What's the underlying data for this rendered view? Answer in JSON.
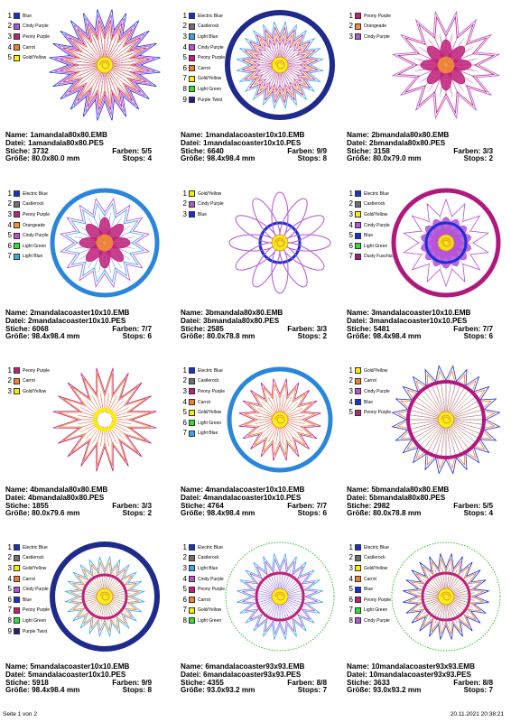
{
  "labels": {
    "name": "Name:",
    "file": "Datei:",
    "stitches": "Stiche:",
    "size": "Größe:",
    "colors": "Farben:",
    "stops": "Stops:"
  },
  "footer": {
    "page": "Seite 1 von 2",
    "timestamp": "20.11.2021 20:38:21"
  },
  "designs": [
    {
      "name": "1amandala80x80.EMB",
      "file": "1amandala80x80.PES",
      "stitches": "3732",
      "size": "80.0x80.0 mm",
      "colors": "5/5",
      "stops": "4",
      "palette": [
        {
          "label": "Blue",
          "hex": "#1a2fd8"
        },
        {
          "label": "Cindy Purple",
          "hex": "#b452d8"
        },
        {
          "label": "Peony Purple",
          "hex": "#c0207a"
        },
        {
          "label": "Carrot",
          "hex": "#f08030"
        },
        {
          "label": "Gold/Yellow",
          "hex": "#f4f000"
        }
      ]
    },
    {
      "name": "1mandalacoaster10x10.EMB",
      "file": "1mandalacoaster10x10.PES",
      "stitches": "6640",
      "size": "98.4x98.4 mm",
      "colors": "9/9",
      "stops": "8",
      "palette": [
        {
          "label": "Electric Blue",
          "hex": "#1535c8"
        },
        {
          "label": "Castlerock",
          "hex": "#707070"
        },
        {
          "label": "Light Blue",
          "hex": "#3aa6f0"
        },
        {
          "label": "Cindy Purple",
          "hex": "#b452d8"
        },
        {
          "label": "Peony Purple",
          "hex": "#c0207a"
        },
        {
          "label": "Carrot",
          "hex": "#f08030"
        },
        {
          "label": "Gold/Yellow",
          "hex": "#f4f000"
        },
        {
          "label": "Light Green",
          "hex": "#30e030"
        },
        {
          "label": "Purple Twist",
          "hex": "#2c1a8c"
        }
      ]
    },
    {
      "name": "2bmandala80x80.EMB",
      "file": "2bmandala80x80.PES",
      "stitches": "3158",
      "size": "80.0x79.0 mm",
      "colors": "3/3",
      "stops": "2",
      "palette": [
        {
          "label": "Peony Purple",
          "hex": "#c0207a"
        },
        {
          "label": "Orangeade",
          "hex": "#f0903a"
        },
        {
          "label": "Cindy Purple",
          "hex": "#b452d8"
        }
      ]
    },
    {
      "name": "2mandalacoaster10x10.EMB",
      "file": "2mandalacoaster10x10.PES",
      "stitches": "6068",
      "size": "98.4x98.4 mm",
      "colors": "7/7",
      "stops": "6",
      "palette": [
        {
          "label": "Electric Blue",
          "hex": "#1535c8"
        },
        {
          "label": "Castlerock",
          "hex": "#707070"
        },
        {
          "label": "Peony Purple",
          "hex": "#c0207a"
        },
        {
          "label": "Orangeade",
          "hex": "#f0903a"
        },
        {
          "label": "Cindy Purple",
          "hex": "#b452d8"
        },
        {
          "label": "Light Green",
          "hex": "#30e030"
        },
        {
          "label": "Light Blue",
          "hex": "#3aa6f0"
        }
      ]
    },
    {
      "name": "3bmandala80x80.EMB",
      "file": "3bmandala80x80.PES",
      "stitches": "2585",
      "size": "80.0x78.8 mm",
      "colors": "3/3",
      "stops": "2",
      "palette": [
        {
          "label": "Gold/Yellow",
          "hex": "#f4f000"
        },
        {
          "label": "Cindy Purple",
          "hex": "#b452d8"
        },
        {
          "label": "Blue",
          "hex": "#1a2fd8"
        }
      ]
    },
    {
      "name": "3mandalacoaster10x10.EMB",
      "file": "3mandalacoaster10x10.PES",
      "stitches": "5481",
      "size": "98.4x98.4 mm",
      "colors": "7/7",
      "stops": "6",
      "palette": [
        {
          "label": "Electric Blue",
          "hex": "#1535c8"
        },
        {
          "label": "Castlerock",
          "hex": "#707070"
        },
        {
          "label": "Gold/Yellow",
          "hex": "#f4f000"
        },
        {
          "label": "Cindy Purple",
          "hex": "#b452d8"
        },
        {
          "label": "Blue",
          "hex": "#1a2fd8"
        },
        {
          "label": "Light Green",
          "hex": "#30e030"
        },
        {
          "label": "Dusty Fuschia",
          "hex": "#b01880"
        }
      ]
    },
    {
      "name": "4bmandala80x80.EMB",
      "file": "4bmandala80x80.PES",
      "stitches": "1855",
      "size": "80.0x79.6 mm",
      "colors": "3/3",
      "stops": "2",
      "palette": [
        {
          "label": "Peony Purple",
          "hex": "#c0207a"
        },
        {
          "label": "Carrot",
          "hex": "#f08030"
        },
        {
          "label": "Gold/Yellow",
          "hex": "#f4f000"
        }
      ]
    },
    {
      "name": "4mandalacoaster10x10.EMB",
      "file": "4mandalacoaster10x10.PES",
      "stitches": "4764",
      "size": "98.4x98.4 mm",
      "colors": "7/7",
      "stops": "6",
      "palette": [
        {
          "label": "Electric Blue",
          "hex": "#1535c8"
        },
        {
          "label": "Castlerock",
          "hex": "#707070"
        },
        {
          "label": "Peony Purple",
          "hex": "#c0207a"
        },
        {
          "label": "Carrot",
          "hex": "#f08030"
        },
        {
          "label": "Gold/Yellow",
          "hex": "#f4f000"
        },
        {
          "label": "Light Green",
          "hex": "#30e030"
        },
        {
          "label": "Light Blue",
          "hex": "#3aa6f0"
        }
      ]
    },
    {
      "name": "5bmandala80x80.EMB",
      "file": "5bmandala80x80.PES",
      "stitches": "2982",
      "size": "80.0x78.8 mm",
      "colors": "5/5",
      "stops": "4",
      "palette": [
        {
          "label": "Gold/Yellow",
          "hex": "#f4f000"
        },
        {
          "label": "Carrot",
          "hex": "#f08030"
        },
        {
          "label": "Cindy Purple",
          "hex": "#b452d8"
        },
        {
          "label": "Blue",
          "hex": "#1a2fd8"
        },
        {
          "label": "Peony Purple",
          "hex": "#c0207a"
        }
      ]
    },
    {
      "name": "5mandalacoaster10x10.EMB",
      "file": "5mandalacoaster10x10.PES",
      "stitches": "5918",
      "size": "98.4x98.4 mm",
      "colors": "9/9",
      "stops": "8",
      "palette": [
        {
          "label": "Electric Blue",
          "hex": "#1535c8"
        },
        {
          "label": "Castlerock",
          "hex": "#707070"
        },
        {
          "label": "Gold/Yellow",
          "hex": "#f4f000"
        },
        {
          "label": "Carrot",
          "hex": "#f08030"
        },
        {
          "label": "Cindy Purple",
          "hex": "#b452d8"
        },
        {
          "label": "Blue",
          "hex": "#1a2fd8"
        },
        {
          "label": "Peony Purple",
          "hex": "#c0207a"
        },
        {
          "label": "Light Green",
          "hex": "#30e030"
        },
        {
          "label": "Purple Twist",
          "hex": "#2c1a8c"
        }
      ]
    },
    {
      "name": "6mandalacoaster93x93.EMB",
      "file": "6mandalacoaster93x93.PES",
      "stitches": "4355",
      "size": "93.0x93.2 mm",
      "colors": "8/8",
      "stops": "7",
      "palette": [
        {
          "label": "Electric Blue",
          "hex": "#1535c8"
        },
        {
          "label": "Castlerock",
          "hex": "#707070"
        },
        {
          "label": "Light Blue",
          "hex": "#3aa6f0"
        },
        {
          "label": "Cindy Purple",
          "hex": "#b452d8"
        },
        {
          "label": "Peony Purple",
          "hex": "#c0207a"
        },
        {
          "label": "Carrot",
          "hex": "#f08030"
        },
        {
          "label": "Gold/Yellow",
          "hex": "#f4f000"
        },
        {
          "label": "Light Green",
          "hex": "#30e030"
        }
      ]
    },
    {
      "name": "10mandalacoaster93x93.EMB",
      "file": "10mandalacoaster93x93.PES",
      "stitches": "3633",
      "size": "93.0x93.2 mm",
      "colors": "8/8",
      "stops": "7",
      "palette": [
        {
          "label": "Electric Blue",
          "hex": "#1535c8"
        },
        {
          "label": "Castlerock",
          "hex": "#707070"
        },
        {
          "label": "Gold/Yellow",
          "hex": "#f4f000"
        },
        {
          "label": "Carrot",
          "hex": "#f08030"
        },
        {
          "label": "Blue",
          "hex": "#1a2fd8"
        },
        {
          "label": "Peony Purple",
          "hex": "#c0207a"
        },
        {
          "label": "Light Green",
          "hex": "#30e030"
        },
        {
          "label": "Cindy Purple",
          "hex": "#b452d8"
        }
      ]
    }
  ]
}
